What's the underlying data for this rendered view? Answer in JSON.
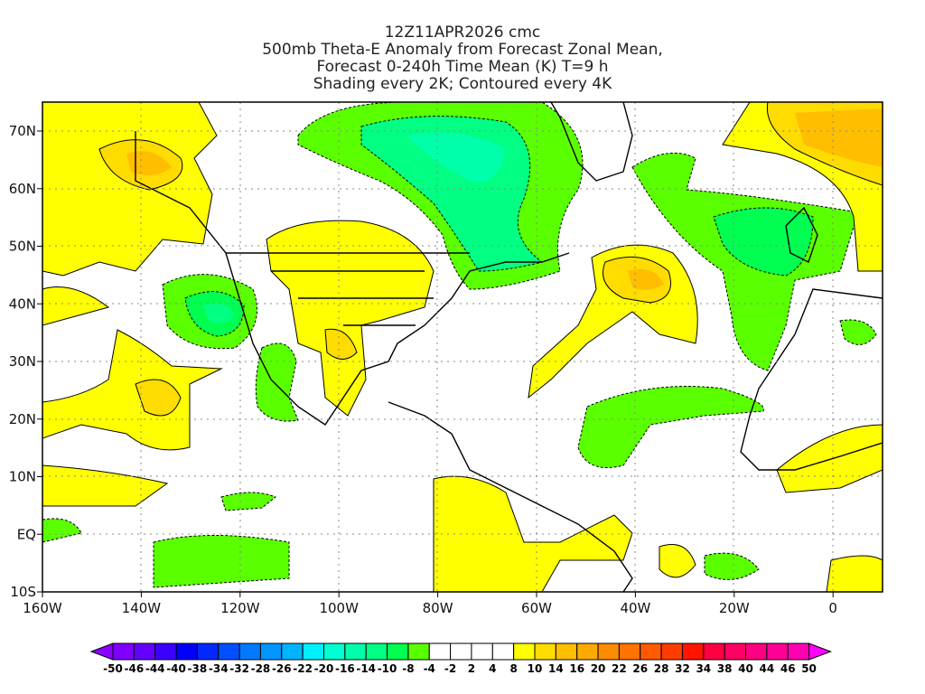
{
  "title": {
    "line1": "12Z11APR2026 cmc",
    "line2": "500mb Theta-E Anomaly from Forecast Zonal Mean,",
    "line3": "Forecast 0-240h Time Mean (K) T=9 h",
    "line4": "Shading every 2K; Contoured every 4K"
  },
  "map": {
    "lon_labels": [
      "160W",
      "140W",
      "120W",
      "100W",
      "80W",
      "60W",
      "40W",
      "20W",
      "0"
    ],
    "lat_labels": [
      "70N",
      "60N",
      "50N",
      "40N",
      "30N",
      "20N",
      "10N",
      "EQ",
      "10S"
    ],
    "lon_range": [
      -160,
      10
    ],
    "lat_range": [
      -10,
      75
    ]
  },
  "colorbar": {
    "labels": [
      "-50",
      "-46",
      "-44",
      "-40",
      "-38",
      "-34",
      "-32",
      "-28",
      "-26",
      "-22",
      "-20",
      "-16",
      "-14",
      "-10",
      "-8",
      "-4",
      "-2",
      "2",
      "4",
      "8",
      "10",
      "14",
      "16",
      "20",
      "22",
      "26",
      "28",
      "32",
      "34",
      "38",
      "40",
      "44",
      "46",
      "50"
    ],
    "low_arrow_color": "#8c00ff",
    "high_arrow_color": "#ff00ff",
    "colors": [
      "#7f00ff",
      "#6400ff",
      "#3c00ff",
      "#0000ff",
      "#0028ff",
      "#0050ff",
      "#0078ff",
      "#0096ff",
      "#00b4ff",
      "#00f0ff",
      "#00ffd2",
      "#00ffaa",
      "#00ff82",
      "#00ff50",
      "#5aff00",
      "#ffffff",
      "#ffffff",
      "#ffffff",
      "#ffffff",
      "#ffff00",
      "#ffdc00",
      "#ffbe00",
      "#ffaa00",
      "#ff8c00",
      "#ff7300",
      "#ff5a00",
      "#ff3c00",
      "#ff1400",
      "#ff0040",
      "#ff0064",
      "#ff0082",
      "#ff0096",
      "#ff00b4",
      "#ff00d2"
    ]
  },
  "palette": {
    "yellow": "#ffff00",
    "gold": "#ffdc00",
    "orange_light": "#ffbe00",
    "orange": "#ffaa00",
    "green": "#5aff00",
    "green2": "#00ff50",
    "green3": "#00ff82",
    "green4": "#00ffaa"
  }
}
